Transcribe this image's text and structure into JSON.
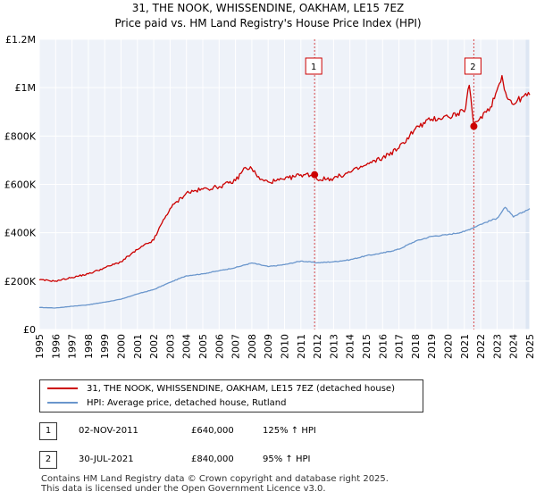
{
  "chart_data": {
    "type": "line",
    "title": "31, THE NOOK, WHISSENDINE, OAKHAM, LE15 7EZ",
    "subtitle": "Price paid vs. HM Land Registry's House Price Index (HPI)",
    "x_ticks": [
      "1995",
      "1996",
      "1997",
      "1998",
      "1999",
      "2000",
      "2001",
      "2002",
      "2003",
      "2004",
      "2005",
      "2006",
      "2007",
      "2008",
      "2009",
      "2010",
      "2011",
      "2012",
      "2013",
      "2014",
      "2015",
      "2016",
      "2017",
      "2018",
      "2019",
      "2020",
      "2021",
      "2022",
      "2023",
      "2024",
      "2025"
    ],
    "y_ticks": [
      "£0",
      "£200K",
      "£400K",
      "£600K",
      "£800K",
      "£1M",
      "£1.2M"
    ],
    "xlim": [
      1995,
      2025
    ],
    "ylim": [
      0,
      1200000
    ],
    "grid": true,
    "series": [
      {
        "name": "31, THE NOOK, WHISSENDINE, OAKHAM, LE15 7EZ (detached house)",
        "color": "#cc0000",
        "x": [
          1995,
          1996,
          1997,
          1998,
          1999,
          2000,
          2001,
          2002,
          2002.5,
          2003,
          2004,
          2005,
          2006,
          2007,
          2007.6,
          2008,
          2008.5,
          2009,
          2009.5,
          2010,
          2011,
          2011.84,
          2012,
          2013,
          2014,
          2015,
          2016,
          2017,
          2018,
          2019,
          2020,
          2021,
          2021.3,
          2021.58,
          2022,
          2022.6,
          2023,
          2023.3,
          2023.6,
          2024,
          2024.5,
          2025
        ],
        "values": [
          205000,
          200000,
          215000,
          230000,
          255000,
          280000,
          330000,
          370000,
          440000,
          500000,
          565000,
          580000,
          590000,
          615000,
          670000,
          665000,
          620000,
          610000,
          615000,
          620000,
          640000,
          640000,
          620000,
          625000,
          650000,
          680000,
          710000,
          750000,
          830000,
          870000,
          880000,
          900000,
          1010000,
          840000,
          880000,
          920000,
          990000,
          1050000,
          960000,
          930000,
          960000,
          970000
        ]
      },
      {
        "name": "HPI: Average price, detached house, Rutland",
        "color": "#6a96cc",
        "x": [
          1995,
          1996,
          1997,
          1998,
          1999,
          2000,
          2001,
          2002,
          2003,
          2004,
          2005,
          2006,
          2007,
          2008,
          2009,
          2010,
          2011,
          2012,
          2013,
          2014,
          2015,
          2016,
          2017,
          2018,
          2019,
          2020,
          2021,
          2022,
          2023,
          2023.5,
          2024,
          2025
        ],
        "values": [
          91000,
          89000,
          96000,
          102000,
          113000,
          125000,
          147000,
          165000,
          195000,
          222000,
          230000,
          243000,
          256000,
          275000,
          260000,
          268000,
          283000,
          276000,
          280000,
          288000,
          305000,
          316000,
          332000,
          365000,
          385000,
          392000,
          405000,
          435000,
          460000,
          505000,
          465000,
          500000
        ]
      }
    ],
    "sales": [
      {
        "id": "1",
        "x": 2011.84,
        "price": 640000
      },
      {
        "id": "2",
        "x": 2021.58,
        "price": 840000
      }
    ]
  },
  "legend": {
    "property_label": "31, THE NOOK, WHISSENDINE, OAKHAM, LE15 7EZ (detached house)",
    "hpi_label": "HPI: Average price, detached house, Rutland"
  },
  "sales_table": [
    {
      "id": "1",
      "date": "02-NOV-2011",
      "price": "£640,000",
      "hpi": "125% ↑ HPI"
    },
    {
      "id": "2",
      "date": "30-JUL-2021",
      "price": "£840,000",
      "hpi": "95% ↑ HPI"
    }
  ],
  "footer": {
    "line1": "Contains HM Land Registry data © Crown copyright and database right 2025.",
    "line2": "This data is licensed under the Open Government Licence v3.0."
  },
  "colors": {
    "property": "#cc0000",
    "hpi": "#6a96cc",
    "plot_bg": "#eef2f9",
    "highlight": "#dde6f3"
  }
}
